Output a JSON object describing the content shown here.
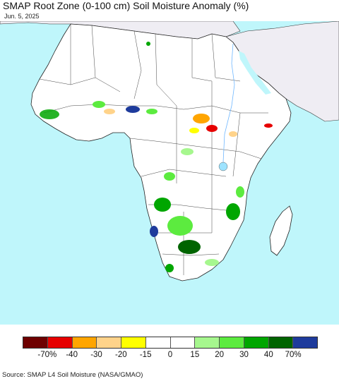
{
  "title": "SMAP Root Zone (0-100 cm) Soil Moisture Anomaly (%)",
  "date": "Jun. 5, 2025",
  "source": "Source: SMAP L4 Soil Moisture (NASA/GMAO)",
  "colors": {
    "ocean": "#bff6fb",
    "land": "#ffffff",
    "other_land": "#efedf3",
    "border": "#333333"
  },
  "legend": {
    "colors": [
      "#6e0000",
      "#e60000",
      "#ffa500",
      "#ffd38a",
      "#ffff00",
      "#ffffff",
      "#ffffff",
      "#a6f78e",
      "#5ceb3f",
      "#00a600",
      "#006400",
      "#1e3b9c"
    ],
    "labels": [
      "-70%",
      "-40",
      "-30",
      "-20",
      "-15",
      "0",
      "15",
      "20",
      "30",
      "40",
      "70%"
    ]
  }
}
